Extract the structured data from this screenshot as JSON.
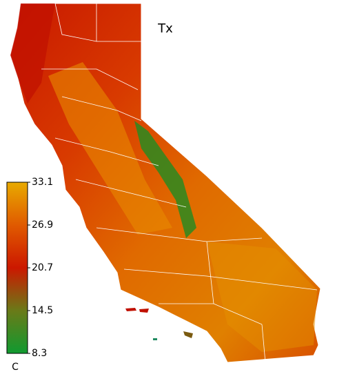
{
  "title": "Tx",
  "colorbar": {
    "lim": [
      8.3,
      33.1
    ],
    "ticks": [
      33.1,
      26.9,
      20.7,
      14.5,
      8.3
    ],
    "unit": "C"
  }
}
